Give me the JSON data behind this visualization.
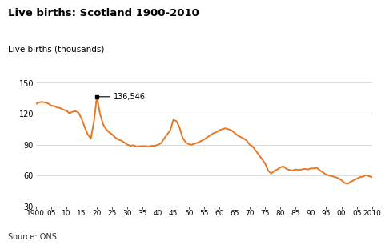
{
  "title": "Live births: Scotland 1900-2010",
  "ylabel": "Live births (thousands)",
  "source": "Source: ONS",
  "line_color": "#E87722",
  "background_color": "#ffffff",
  "annotation_text": "136,546",
  "annotation_year": 1920,
  "annotation_value": 136.546,
  "xlim": [
    1900,
    2010
  ],
  "ylim": [
    30,
    150
  ],
  "yticks": [
    30,
    60,
    90,
    120,
    150
  ],
  "xtick_labels": [
    "1900",
    "05",
    "10",
    "15",
    "20",
    "25",
    "30",
    "35",
    "40",
    "45",
    "50",
    "55",
    "60",
    "65",
    "70",
    "75",
    "80",
    "85",
    "90",
    "95",
    "00",
    "05",
    "2010"
  ],
  "xtick_values": [
    1900,
    1905,
    1910,
    1915,
    1920,
    1925,
    1930,
    1935,
    1940,
    1945,
    1950,
    1955,
    1960,
    1965,
    1970,
    1975,
    1980,
    1985,
    1990,
    1995,
    2000,
    2005,
    2010
  ],
  "data": [
    [
      1900,
      129.5
    ],
    [
      1901,
      131.0
    ],
    [
      1902,
      131.5
    ],
    [
      1903,
      131.0
    ],
    [
      1904,
      130.0
    ],
    [
      1905,
      128.0
    ],
    [
      1906,
      127.5
    ],
    [
      1907,
      126.0
    ],
    [
      1908,
      125.5
    ],
    [
      1909,
      124.0
    ],
    [
      1910,
      123.0
    ],
    [
      1911,
      120.5
    ],
    [
      1912,
      122.0
    ],
    [
      1913,
      122.5
    ],
    [
      1914,
      121.0
    ],
    [
      1915,
      115.0
    ],
    [
      1916,
      107.0
    ],
    [
      1917,
      100.0
    ],
    [
      1918,
      96.0
    ],
    [
      1919,
      112.0
    ],
    [
      1920,
      136.546
    ],
    [
      1921,
      120.0
    ],
    [
      1922,
      110.0
    ],
    [
      1923,
      105.0
    ],
    [
      1924,
      102.0
    ],
    [
      1925,
      100.0
    ],
    [
      1926,
      97.0
    ],
    [
      1927,
      95.0
    ],
    [
      1928,
      94.0
    ],
    [
      1929,
      92.0
    ],
    [
      1930,
      90.0
    ],
    [
      1931,
      89.0
    ],
    [
      1932,
      89.5
    ],
    [
      1933,
      88.0
    ],
    [
      1934,
      88.5
    ],
    [
      1935,
      88.5
    ],
    [
      1936,
      88.5
    ],
    [
      1937,
      88.0
    ],
    [
      1938,
      89.0
    ],
    [
      1939,
      89.0
    ],
    [
      1940,
      90.0
    ],
    [
      1941,
      91.5
    ],
    [
      1942,
      96.0
    ],
    [
      1943,
      100.0
    ],
    [
      1944,
      104.0
    ],
    [
      1945,
      114.0
    ],
    [
      1946,
      113.0
    ],
    [
      1947,
      107.0
    ],
    [
      1948,
      97.0
    ],
    [
      1949,
      92.5
    ],
    [
      1950,
      90.5
    ],
    [
      1951,
      90.0
    ],
    [
      1952,
      91.0
    ],
    [
      1953,
      92.0
    ],
    [
      1954,
      93.5
    ],
    [
      1955,
      95.0
    ],
    [
      1956,
      97.0
    ],
    [
      1957,
      99.0
    ],
    [
      1958,
      101.0
    ],
    [
      1959,
      102.0
    ],
    [
      1960,
      104.0
    ],
    [
      1961,
      105.0
    ],
    [
      1962,
      106.0
    ],
    [
      1963,
      105.0
    ],
    [
      1964,
      104.0
    ],
    [
      1965,
      101.5
    ],
    [
      1966,
      99.0
    ],
    [
      1967,
      97.5
    ],
    [
      1968,
      96.0
    ],
    [
      1969,
      94.0
    ],
    [
      1970,
      90.0
    ],
    [
      1971,
      88.0
    ],
    [
      1972,
      84.0
    ],
    [
      1973,
      80.0
    ],
    [
      1974,
      76.0
    ],
    [
      1975,
      72.0
    ],
    [
      1976,
      65.0
    ],
    [
      1977,
      62.0
    ],
    [
      1978,
      64.5
    ],
    [
      1979,
      66.0
    ],
    [
      1980,
      68.0
    ],
    [
      1981,
      69.0
    ],
    [
      1982,
      66.5
    ],
    [
      1983,
      65.5
    ],
    [
      1984,
      65.0
    ],
    [
      1985,
      66.0
    ],
    [
      1986,
      65.5
    ],
    [
      1987,
      66.0
    ],
    [
      1988,
      66.5
    ],
    [
      1989,
      66.0
    ],
    [
      1990,
      67.0
    ],
    [
      1991,
      67.0
    ],
    [
      1992,
      67.5
    ],
    [
      1993,
      65.0
    ],
    [
      1994,
      63.0
    ],
    [
      1995,
      61.0
    ],
    [
      1996,
      60.0
    ],
    [
      1997,
      59.5
    ],
    [
      1998,
      58.5
    ],
    [
      1999,
      57.5
    ],
    [
      2000,
      55.5
    ],
    [
      2001,
      53.0
    ],
    [
      2002,
      52.0
    ],
    [
      2003,
      54.0
    ],
    [
      2004,
      55.5
    ],
    [
      2005,
      57.0
    ],
    [
      2006,
      58.5
    ],
    [
      2007,
      59.0
    ],
    [
      2008,
      60.5
    ],
    [
      2009,
      59.5
    ],
    [
      2010,
      58.5
    ]
  ]
}
